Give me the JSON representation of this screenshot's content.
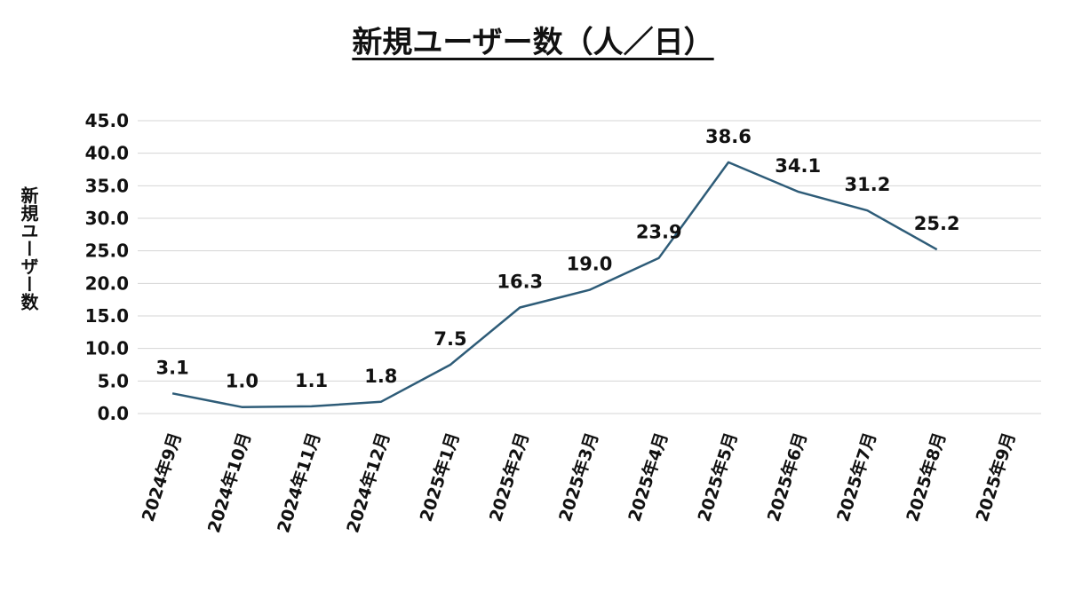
{
  "chart_data": {
    "type": "line",
    "title": "新規ユーザー数（人／日）",
    "xlabel": "",
    "ylabel": "新規ユーザー数",
    "ylim": [
      0,
      45
    ],
    "yticks": [
      "0.0",
      "5.0",
      "10.0",
      "15.0",
      "20.0",
      "25.0",
      "30.0",
      "35.0",
      "40.0",
      "45.0"
    ],
    "grid": true,
    "legend": "none",
    "color": "#2e5c78",
    "categories": [
      "2024年9月",
      "2024年10月",
      "2024年11月",
      "2024年12月",
      "2025年1月",
      "2025年2月",
      "2025年3月",
      "2025年4月",
      "2025年5月",
      "2025年6月",
      "2025年7月",
      "2025年8月",
      "2025年9月"
    ],
    "series": [
      {
        "values": [
          3.1,
          1.0,
          1.1,
          1.8,
          7.5,
          16.3,
          19.0,
          23.9,
          38.6,
          34.1,
          31.2,
          25.2,
          null
        ],
        "labels": [
          "3.1",
          "1.0",
          "1.1",
          "1.8",
          "7.5",
          "16.3",
          "19.0",
          "23.9",
          "38.6",
          "34.1",
          "31.2",
          "25.2",
          null
        ]
      }
    ]
  }
}
